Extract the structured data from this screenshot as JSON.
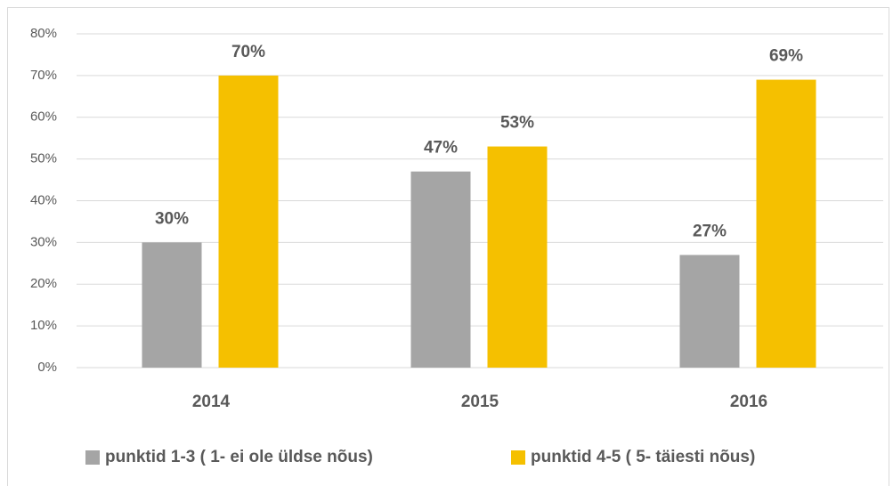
{
  "chart_data": {
    "type": "bar",
    "categories": [
      "2014",
      "2015",
      "2016"
    ],
    "series": [
      {
        "name": "punktid 1-3 ( 1- ei ole üldse nõus)",
        "color": "#a5a5a5",
        "values": [
          30,
          47,
          27
        ],
        "value_labels": [
          "30%",
          "47%",
          "27%"
        ]
      },
      {
        "name": "punktid 4-5 ( 5- täiesti nõus)",
        "color": "#f5c000",
        "values": [
          70,
          53,
          69
        ],
        "value_labels": [
          "70%",
          "53%",
          "69%"
        ]
      }
    ],
    "ylim": [
      0,
      80
    ],
    "yticks": [
      {
        "value": 0,
        "label": "0%"
      },
      {
        "value": 10,
        "label": "10%"
      },
      {
        "value": 20,
        "label": "20%"
      },
      {
        "value": 30,
        "label": "30%"
      },
      {
        "value": 40,
        "label": "40%"
      },
      {
        "value": 50,
        "label": "50%"
      },
      {
        "value": 60,
        "label": "60%"
      },
      {
        "value": 70,
        "label": "70%"
      },
      {
        "value": 80,
        "label": "80%"
      }
    ],
    "grid": true,
    "legend": "bottom"
  }
}
